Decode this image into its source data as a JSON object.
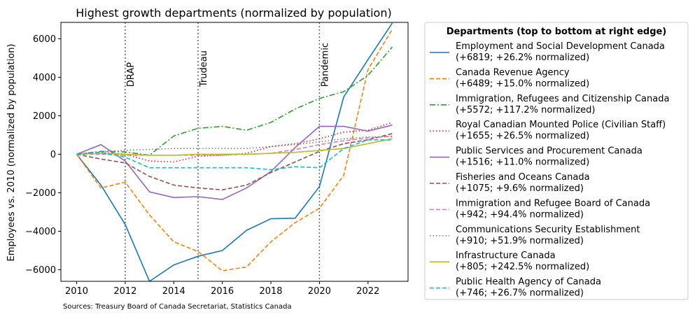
{
  "chart_data": {
    "type": "line",
    "title": "Highest growth departments (normalized by population)",
    "xlabel": "",
    "ylabel": "Employees vs. 2010 (normalized by population)",
    "source": "Sources: Treasury Board of Canada Secretariat, Statistics Canada",
    "xlim": [
      2009.35,
      2023.65
    ],
    "ylim": [
      -6600,
      6850
    ],
    "xticks": [
      2010,
      2012,
      2014,
      2016,
      2018,
      2020,
      2022
    ],
    "yticks": [
      -6000,
      -4000,
      -2000,
      0,
      2000,
      4000,
      6000
    ],
    "grid": false,
    "legend_position": "outside-right",
    "legend_title": "Departments (top to bottom at right edge)",
    "vlines": [
      {
        "x": 2012,
        "label": "DRAP"
      },
      {
        "x": 2015,
        "label": "Trudeau"
      },
      {
        "x": 2020,
        "label": "Pandemic"
      }
    ],
    "x": [
      2010,
      2011,
      2012,
      2013,
      2014,
      2015,
      2016,
      2017,
      2018,
      2019,
      2020,
      2021,
      2022,
      2023
    ],
    "series": [
      {
        "name": "Employment and Social Development Canada",
        "detail": "(+6819; +26.2% normalized)",
        "color": "#1f77b4",
        "dash": "solid",
        "values": [
          0,
          -1600,
          -3650,
          -6600,
          -5750,
          -5300,
          -5000,
          -3950,
          -3350,
          -3320,
          -1680,
          2980,
          4920,
          6819
        ]
      },
      {
        "name": "Canada Revenue Agency",
        "detail": "(+6489; +15.0% normalized)",
        "color": "#ff7f0e",
        "dash": "dashed",
        "values": [
          0,
          -1750,
          -1450,
          -3150,
          -4550,
          -5050,
          -6050,
          -5850,
          -4550,
          -3550,
          -2800,
          -1100,
          4400,
          6489
        ]
      },
      {
        "name": "Immigration, Refugees and Citizenship Canada",
        "detail": "(+5572; +117.2% normalized)",
        "color": "#2ca02c",
        "dash": "dashdot",
        "values": [
          0,
          150,
          120,
          -50,
          950,
          1350,
          1450,
          1250,
          1650,
          2350,
          2900,
          3250,
          4100,
          5572
        ]
      },
      {
        "name": "Royal Canadian Mounted Police (Civilian Staff)",
        "detail": "(+1655; +26.5% normalized)",
        "color": "#d62728",
        "dash": "dotted",
        "values": [
          0,
          100,
          0,
          -350,
          -400,
          -100,
          -50,
          50,
          400,
          550,
          800,
          1150,
          1250,
          1655
        ]
      },
      {
        "name": "Public Services and Procurement Canada",
        "detail": "(+1516; +11.0% normalized)",
        "color": "#9467bd",
        "dash": "solid",
        "values": [
          0,
          500,
          -350,
          -1950,
          -2250,
          -2200,
          -2350,
          -1750,
          -900,
          350,
          1450,
          1450,
          1200,
          1516
        ]
      },
      {
        "name": "Fisheries and Oceans Canada",
        "detail": "(+1075; +9.6% normalized)",
        "color": "#8c564b",
        "dash": "dashed",
        "values": [
          0,
          -250,
          -450,
          -1150,
          -1600,
          -1750,
          -1850,
          -1600,
          -950,
          -400,
          150,
          550,
          750,
          1075
        ]
      },
      {
        "name": "Immigration and Refugee Board of Canada",
        "detail": "(+942; +94.4% normalized)",
        "color": "#e377c2",
        "dash": "dashed",
        "values": [
          0,
          0,
          -50,
          -50,
          -50,
          -50,
          -50,
          0,
          50,
          250,
          500,
          700,
          850,
          942
        ]
      },
      {
        "name": "Communications Security Establishment",
        "detail": "(+910; +51.9% normalized)",
        "color": "#7f7f7f",
        "dash": "dotted",
        "values": [
          0,
          150,
          200,
          250,
          300,
          300,
          300,
          300,
          400,
          500,
          650,
          800,
          900,
          910
        ]
      },
      {
        "name": "Infrastructure Canada",
        "detail": "(+805; +242.5% normalized)",
        "color": "#bcbd22",
        "dash": "solid",
        "values": [
          0,
          50,
          0,
          -50,
          -50,
          0,
          0,
          0,
          50,
          100,
          200,
          300,
          550,
          805
        ]
      },
      {
        "name": "Public Health Agency of Canada",
        "detail": "(+746; +26.7% normalized)",
        "color": "#17becf",
        "dash": "dashed",
        "values": [
          0,
          100,
          -150,
          -700,
          -700,
          -700,
          -700,
          -700,
          -800,
          -650,
          -700,
          300,
          750,
          746
        ]
      }
    ]
  }
}
